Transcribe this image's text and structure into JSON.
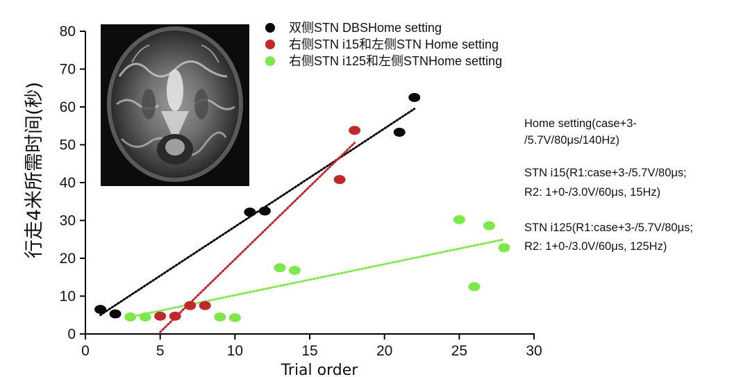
{
  "chart_data": {
    "type": "scatter",
    "xlabel": "Trial order",
    "ylabel": "行走4米所需时间(秒)",
    "xlim": [
      0,
      30
    ],
    "ylim": [
      0,
      80
    ],
    "xticks": [
      0,
      5,
      10,
      15,
      20,
      25,
      30
    ],
    "yticks": [
      0,
      10,
      20,
      30,
      40,
      50,
      60,
      70,
      80
    ],
    "grid": false,
    "legend_position": "top",
    "series": [
      {
        "name": "双侧STN DBSHome setting",
        "color": "#0a0a0a",
        "points": [
          [
            1,
            6.5
          ],
          [
            2,
            5.3
          ],
          [
            11,
            32.2
          ],
          [
            12,
            32.5
          ],
          [
            21,
            53.3
          ],
          [
            22,
            62.5
          ]
        ],
        "trendline": {
          "from": [
            1,
            5
          ],
          "to": [
            22,
            59.5
          ]
        }
      },
      {
        "name": "右侧STN i15和左侧STN Home setting",
        "color": "#c0282c",
        "points": [
          [
            5,
            4.7
          ],
          [
            6,
            4.7
          ],
          [
            7,
            7.5
          ],
          [
            8,
            7.5
          ],
          [
            17,
            40.8
          ],
          [
            18,
            53.8
          ]
        ],
        "trendline": {
          "from": [
            5,
            0.5
          ],
          "to": [
            18,
            50.5
          ]
        }
      },
      {
        "name": "右侧STN i125和左侧STNHome setting",
        "color": "#7ee84a",
        "points": [
          [
            3,
            4.5
          ],
          [
            4,
            4.5
          ],
          [
            9,
            4.5
          ],
          [
            10,
            4.3
          ],
          [
            13,
            17.5
          ],
          [
            14,
            16.8
          ],
          [
            25,
            30.2
          ],
          [
            26,
            12.5
          ],
          [
            27,
            28.6
          ],
          [
            28,
            22.8
          ]
        ],
        "trendline": {
          "from": [
            3,
            4.5
          ],
          "to": [
            28,
            25
          ]
        }
      }
    ],
    "annotations": [
      [
        "Home setting(case+3-",
        "/5.7V/80μs/140Hz)"
      ],
      [
        "STN i15(R1:case+3-/5.7V/80μs;",
        "R2: 1+0-/3.0V/60μs, 15Hz)"
      ],
      [
        "STN i125(R1:case+3-/5.7V/80μs;",
        "R2: 1+0-/3.0V/60μs, 125Hz)"
      ]
    ],
    "inset_image": "axial brain MRI"
  }
}
